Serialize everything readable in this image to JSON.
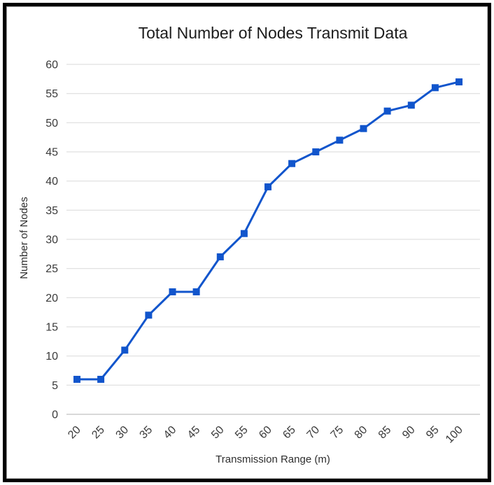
{
  "chart_data": {
    "type": "line",
    "title": "Total Number of Nodes Transmit Data",
    "xlabel": "Transmission Range (m)",
    "ylabel": "Number of Nodes",
    "categories": [
      20,
      25,
      30,
      35,
      40,
      45,
      50,
      55,
      60,
      65,
      70,
      75,
      80,
      85,
      90,
      95,
      100
    ],
    "series": [
      {
        "name": "Number of Nodes",
        "values": [
          6,
          6,
          11,
          17,
          21,
          21,
          27,
          31,
          39,
          43,
          45,
          47,
          49,
          52,
          53,
          56,
          57
        ]
      }
    ],
    "ylim": [
      0,
      60
    ],
    "ytick_step": 5,
    "grid": true,
    "legend_position": "none",
    "marker": "square",
    "colors": {
      "line": "#1155cc",
      "grid": "#d9d9d9",
      "axis_line": "#b0b0b0",
      "tick_text": "#3a3a3a",
      "title_text": "#1c1c1c",
      "frame_border": "#000000",
      "background": "#ffffff"
    }
  }
}
